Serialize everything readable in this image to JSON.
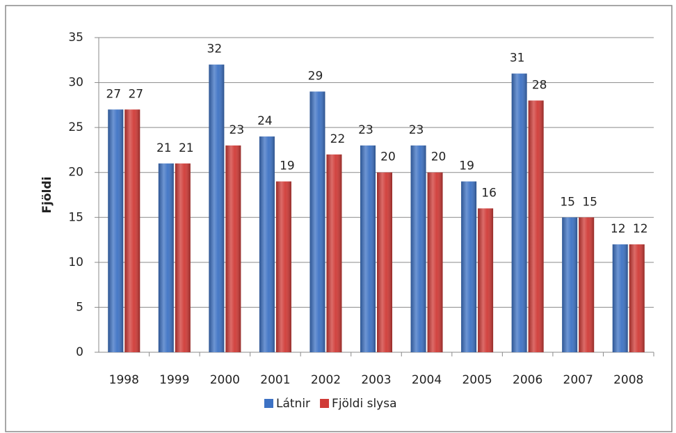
{
  "chart_data": {
    "type": "bar",
    "y_label": "Fjöldi",
    "categories": [
      "1998",
      "1999",
      "2000",
      "2001",
      "2002",
      "2003",
      "2004",
      "2005",
      "2006",
      "2007",
      "2008"
    ],
    "series": [
      {
        "name": "Látnir",
        "color": "#3d72c4",
        "values": [
          27,
          21,
          32,
          24,
          29,
          23,
          23,
          19,
          31,
          15,
          12
        ]
      },
      {
        "name": "Fjöldi slysa",
        "color": "#d03a36",
        "values": [
          27,
          21,
          23,
          19,
          22,
          20,
          20,
          16,
          28,
          15,
          12
        ]
      }
    ],
    "ylim": [
      0,
      35
    ],
    "yticks": [
      0,
      5,
      10,
      15,
      20,
      25,
      30,
      35
    ],
    "grid": true,
    "legend": "bottom"
  }
}
